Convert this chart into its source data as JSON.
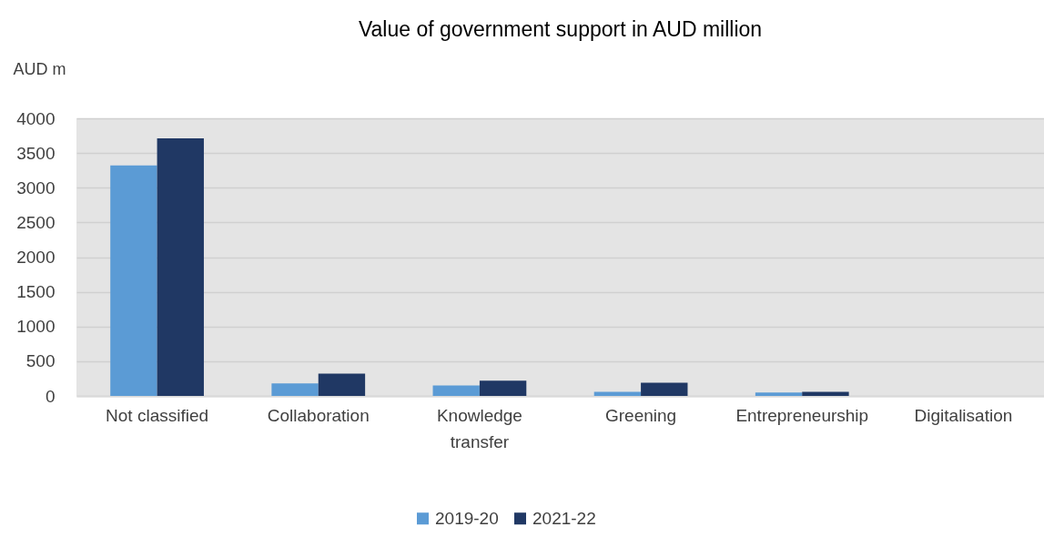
{
  "chart_data": {
    "type": "bar",
    "title": "Value of government support in AUD million",
    "ylabel": "AUD m",
    "categories": [
      "Not classified",
      "Collaboration",
      "Knowledge transfer",
      "Greening",
      "Entrepreneurship",
      "Digitalisation"
    ],
    "series": [
      {
        "name": "2019-20",
        "color": "#5b9bd5",
        "values": [
          3320,
          180,
          150,
          60,
          50,
          0
        ]
      },
      {
        "name": "2021-22",
        "color": "#203864",
        "values": [
          3710,
          320,
          220,
          190,
          60,
          0
        ]
      }
    ],
    "ylim": [
      0,
      4000
    ],
    "yticks": [
      0,
      500,
      1000,
      1500,
      2000,
      2500,
      3000,
      3500,
      4000
    ],
    "grid": "y",
    "legend": "bottom"
  }
}
